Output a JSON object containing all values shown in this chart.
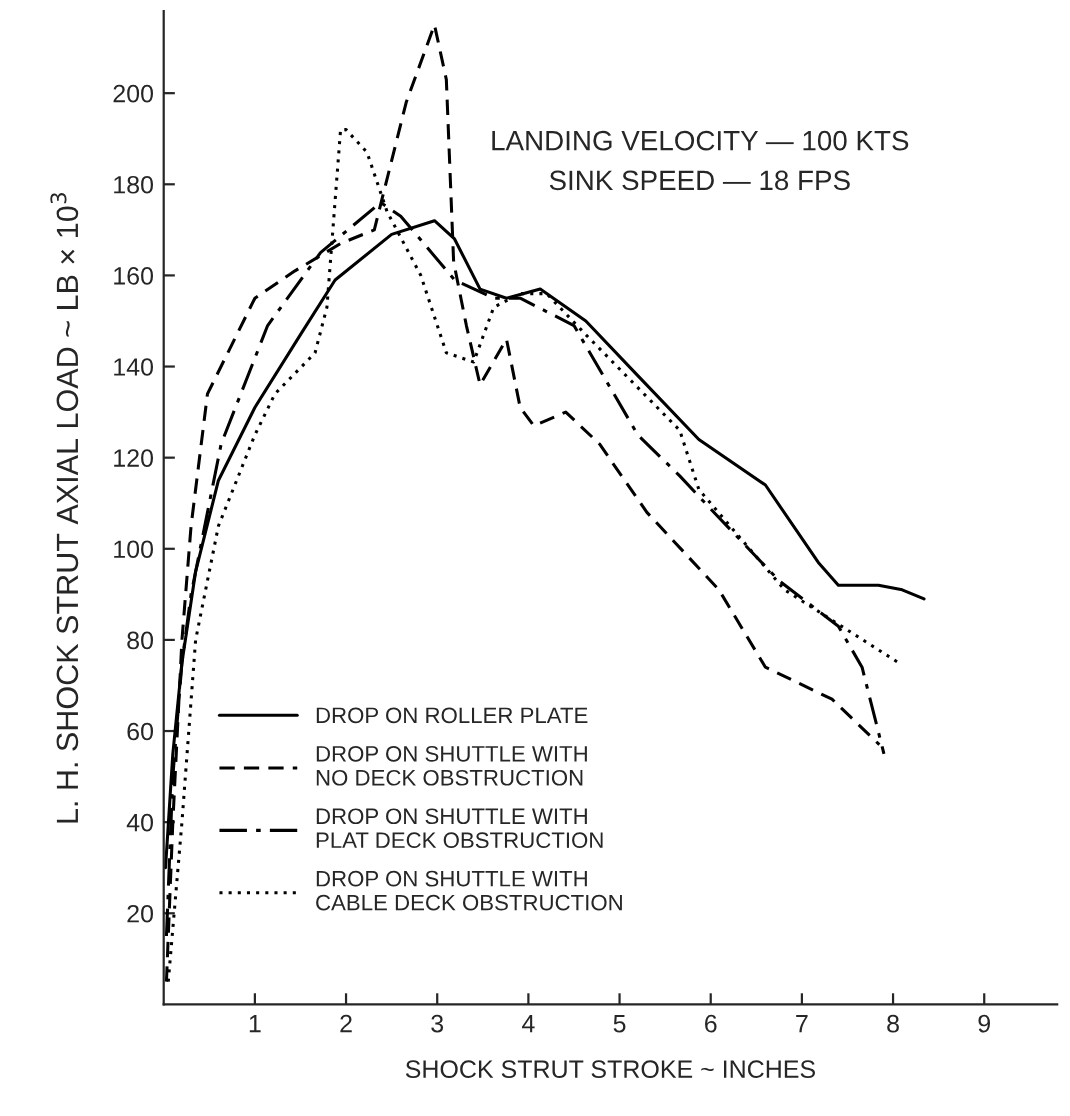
{
  "chart_data": {
    "type": "line",
    "xlabel": "SHOCK STRUT STROKE ~ INCHES",
    "ylabel": "L. H. SHOCK STRUT AXIAL LOAD ~ LB × 10$^{3}$",
    "annotations": [
      "LANDING VELOCITY — 100 KTS",
      "SINK SPEED — 18 FPS"
    ],
    "xlim": [
      0,
      9.8
    ],
    "ylim": [
      0,
      218
    ],
    "xticks": [
      1,
      2,
      3,
      4,
      5,
      6,
      7,
      8,
      9
    ],
    "yticks": [
      20,
      40,
      60,
      80,
      100,
      120,
      140,
      160,
      180,
      200
    ],
    "grid": false,
    "legend": "lower left",
    "marker": "none",
    "series": [
      {
        "name": "DROP ON ROLLER PLATE",
        "color": "#000000",
        "line_style": "solid",
        "x": [
          0.02,
          0.1,
          0.2,
          0.35,
          0.6,
          1.0,
          1.5,
          1.88,
          2.5,
          2.97,
          3.19,
          3.47,
          3.76,
          4.13,
          4.63,
          5.2,
          5.87,
          6.6,
          7.18,
          7.4,
          7.84,
          8.1,
          8.34
        ],
        "values": [
          30,
          55,
          75,
          95,
          115,
          131,
          147,
          159,
          169,
          172,
          168,
          157,
          155,
          157,
          150,
          138,
          124,
          114,
          97,
          92,
          92,
          91,
          89
        ]
      },
      {
        "name": "DROP ON SHUTTLE WITH\nNO DECK OBSTRUCTION",
        "color": "#000000",
        "line_style": "dashed",
        "x": [
          0.03,
          0.1,
          0.2,
          0.3,
          0.48,
          1.0,
          1.44,
          1.94,
          2.31,
          2.66,
          2.97,
          3.1,
          3.18,
          3.32,
          3.47,
          3.76,
          3.91,
          4.06,
          4.41,
          4.78,
          5.3,
          6.09,
          6.6,
          7.33,
          7.85
        ],
        "values": [
          5,
          40,
          80,
          105,
          134,
          155,
          161,
          167,
          170,
          198,
          215,
          203,
          163,
          149,
          136,
          146,
          131,
          127,
          130,
          123,
          108,
          91,
          74,
          67,
          57
        ]
      },
      {
        "name": "DROP ON SHUTTLE WITH\nPLAT DECK OBSTRUCTION",
        "color": "#000000",
        "line_style": "dashdot",
        "x": [
          0.03,
          0.1,
          0.2,
          0.3,
          0.41,
          0.63,
          1.14,
          1.72,
          2.38,
          2.6,
          3.19,
          3.62,
          3.91,
          4.5,
          5.2,
          5.66,
          5.94,
          6.75,
          7.4,
          7.66,
          7.9
        ],
        "values": [
          15,
          50,
          75,
          90,
          101,
          123,
          149,
          165,
          176,
          173,
          159,
          155,
          155,
          149,
          125,
          116,
          110,
          93,
          83,
          74,
          55
        ]
      },
      {
        "name": "DROP ON SHUTTLE WITH\nCABLE DECK OBSTRUCTION",
        "color": "#000000",
        "line_style": "dotted",
        "x": [
          0.05,
          0.2,
          0.35,
          0.6,
          1.0,
          1.22,
          1.66,
          1.79,
          1.94,
          2.0,
          2.23,
          2.45,
          2.82,
          3.1,
          3.4,
          3.62,
          3.91,
          4.2,
          4.63,
          5.66,
          5.87,
          6.81,
          8.06
        ],
        "values": [
          5,
          40,
          80,
          105,
          125,
          134,
          143,
          153,
          192,
          192,
          187,
          174,
          160,
          143,
          141,
          153,
          156,
          156,
          147,
          126,
          113,
          91,
          75
        ]
      }
    ]
  }
}
